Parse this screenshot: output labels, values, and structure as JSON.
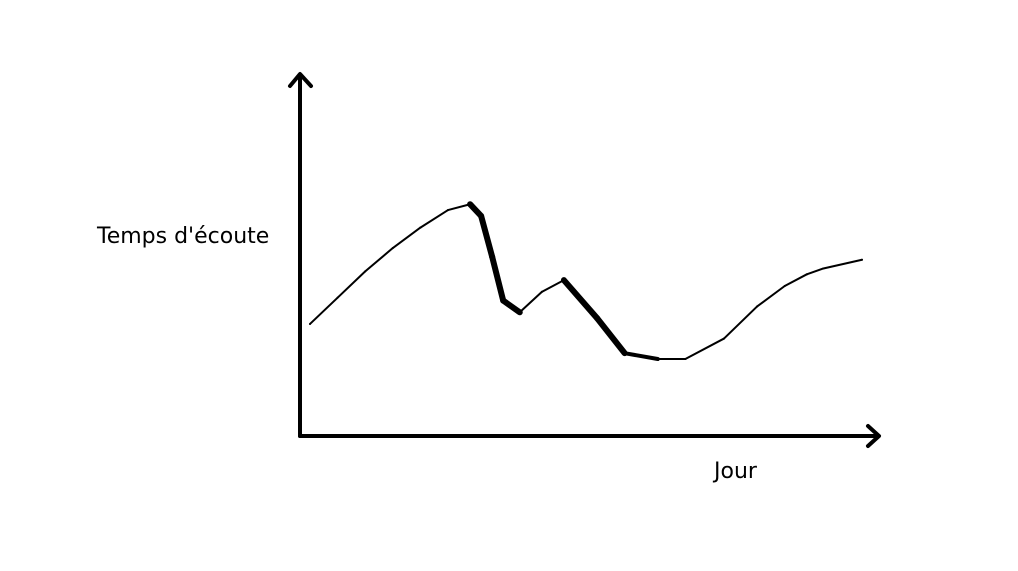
{
  "chart_data": {
    "type": "line",
    "title": "",
    "xlabel": "Jour",
    "ylabel": "Temps d'écoute",
    "xlim": [
      0,
      10
    ],
    "ylim": [
      0,
      10
    ],
    "grid": false,
    "legend": "none",
    "x": [
      0,
      0.5,
      1,
      1.5,
      2,
      2.5,
      2.9,
      3.1,
      3.3,
      3.5,
      3.8,
      4.2,
      4.6,
      5.2,
      5.7,
      6.3,
      6.8,
      7.5,
      8.1,
      8.6,
      9.0,
      9.3,
      10
    ],
    "series": [
      {
        "values": [
          3.7,
          4.6,
          5.5,
          6.3,
          7.0,
          7.6,
          7.8,
          7.4,
          6.0,
          4.5,
          4.1,
          4.8,
          5.2,
          3.9,
          2.7,
          2.5,
          2.5,
          3.2,
          4.3,
          5.0,
          5.4,
          5.6,
          5.9
        ],
        "color": "#000000"
      }
    ]
  }
}
